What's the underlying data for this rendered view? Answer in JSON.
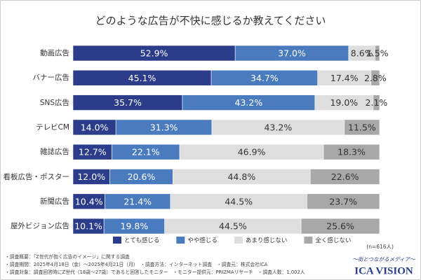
{
  "chart_data": {
    "type": "stacked-bar-horizontal",
    "title": "どのような広告が不快に感じるか教えてください",
    "categories": [
      "動画広告",
      "バナー広告",
      "SNS広告",
      "テレビCM",
      "雑誌広告",
      "看板広告・ポスター",
      "新聞広告",
      "屋外ビジョン広告"
    ],
    "series": [
      {
        "name": "とても感じる",
        "color": "#2b3d8a",
        "values": [
          52.9,
          45.1,
          35.7,
          14.0,
          12.7,
          12.0,
          10.4,
          10.1
        ],
        "value_labels": [
          "52.9%",
          "45.1%",
          "35.7%",
          "14.0%",
          "12.7%",
          "12.0%",
          "10.4%",
          "10.1%"
        ]
      },
      {
        "name": "やや感じる",
        "color": "#4a7bbf",
        "values": [
          37.0,
          34.7,
          43.2,
          31.3,
          22.1,
          20.6,
          21.4,
          19.8
        ],
        "value_labels": [
          "37.0%",
          "34.7%",
          "43.2%",
          "31.3%",
          "22.1%",
          "20.6%",
          "21.4%",
          "19.8%"
        ]
      },
      {
        "name": "あまり感じない",
        "color": "#dedede",
        "values": [
          8.6,
          17.4,
          19.0,
          43.2,
          46.9,
          44.8,
          44.5,
          44.5
        ],
        "value_labels": [
          "8.6%",
          "17.4%",
          "19.0%",
          "43.2%",
          "46.9%",
          "44.8%",
          "44.5%",
          "44.5%"
        ]
      },
      {
        "name": "全く感じない",
        "color": "#a8a8a8",
        "values": [
          1.5,
          2.8,
          2.1,
          11.5,
          18.3,
          22.6,
          23.7,
          25.6
        ],
        "value_labels": [
          "1.5%",
          "2.8%",
          "2.1%",
          "11.5%",
          "18.3%",
          "22.6%",
          "23.7%",
          "25.6%"
        ]
      }
    ],
    "xlim": [
      0,
      100
    ],
    "legend": "bottom",
    "sample_note": "(n=616人)"
  },
  "notes": [
    "・調査概要：「Z世代が抱く広告のイメージ」に関する調査",
    "・調査期間：2025年4月18日（金）～2025年4月21日（月）　・調査方法：インターネット調査　・調査元：株式会社ICA",
    "・調査対象：調査回答時にZ世代（18歳～27歳）であると回答したモニター　・モニター提供元：PRIZMAリサーチ　・調査人数：1,002人"
  ],
  "logo": {
    "tagline": "～街とつながるメディア～",
    "name": "ICA VISION"
  }
}
